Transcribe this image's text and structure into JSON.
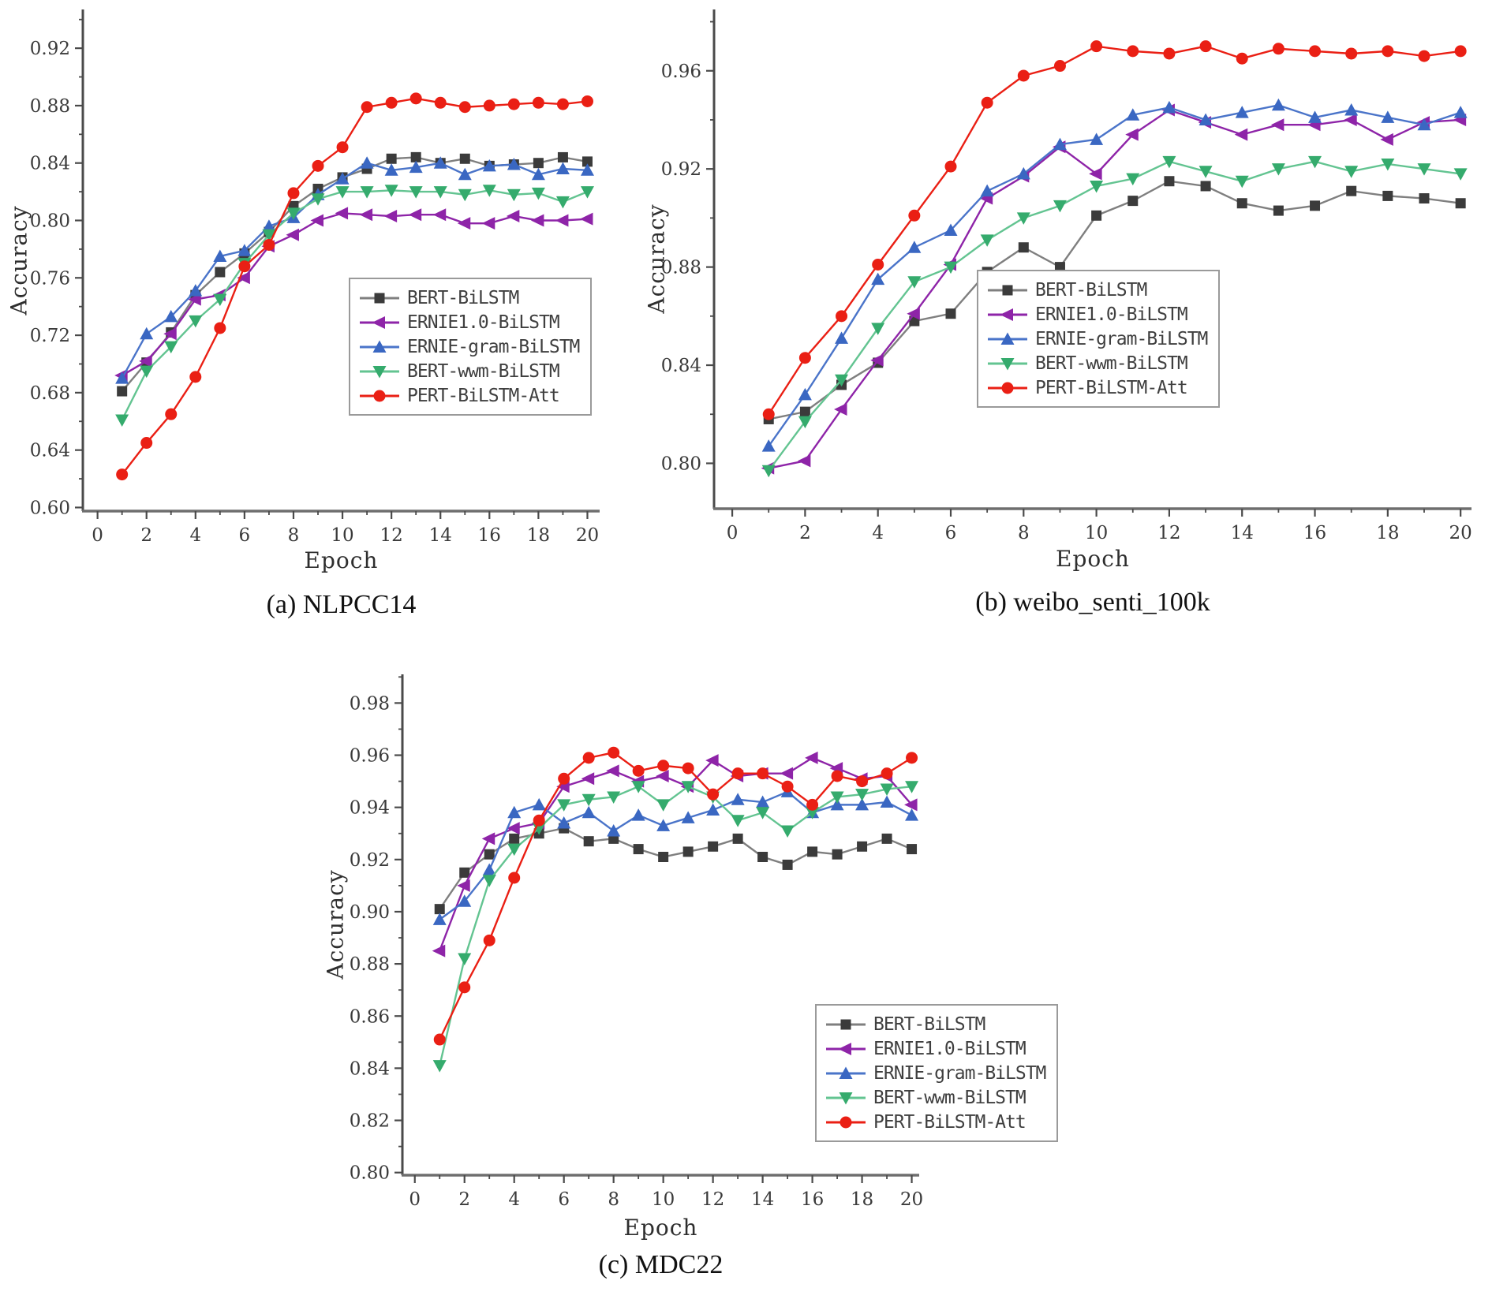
{
  "chart_data": [
    {
      "type": "line",
      "caption": "(a) NLPCC14",
      "xlabel": "Epoch",
      "ylabel": "Accuracy",
      "xlim": [
        0,
        20
      ],
      "ylim": [
        0.6,
        0.92
      ],
      "xticks": [
        0,
        2,
        4,
        6,
        8,
        10,
        12,
        14,
        16,
        18,
        20
      ],
      "yticks": [
        0.6,
        0.64,
        0.68,
        0.72,
        0.76,
        0.8,
        0.84,
        0.88,
        0.92
      ],
      "grid": false,
      "legend_position": "inside lower right",
      "x": [
        1,
        2,
        3,
        4,
        5,
        6,
        7,
        8,
        9,
        10,
        11,
        12,
        13,
        14,
        15,
        16,
        17,
        18,
        19,
        20
      ],
      "series": [
        {
          "name": "BERT-BiLSTM",
          "marker": "square",
          "color": "#3b3b3b",
          "line_color": "#7f7f7f",
          "values": [
            0.681,
            0.701,
            0.722,
            0.748,
            0.764,
            0.777,
            0.792,
            0.81,
            0.822,
            0.83,
            0.836,
            0.843,
            0.844,
            0.84,
            0.843,
            0.838,
            0.839,
            0.84,
            0.844,
            0.841
          ]
        },
        {
          "name": "ERNIE1.0-BiLSTM",
          "marker": "triangle-left",
          "color": "#8e24a8",
          "line_color": "#8e24a8",
          "values": [
            0.692,
            0.702,
            0.721,
            0.745,
            0.748,
            0.76,
            0.782,
            0.79,
            0.8,
            0.805,
            0.804,
            0.803,
            0.804,
            0.804,
            0.798,
            0.798,
            0.803,
            0.8,
            0.8,
            0.801
          ]
        },
        {
          "name": "ERNIE-gram-BiLSTM",
          "marker": "triangle-up",
          "color": "#3a67c2",
          "line_color": "#4a74c9",
          "values": [
            0.69,
            0.721,
            0.733,
            0.751,
            0.775,
            0.779,
            0.796,
            0.802,
            0.818,
            0.829,
            0.84,
            0.835,
            0.837,
            0.84,
            0.832,
            0.838,
            0.839,
            0.832,
            0.836,
            0.835
          ]
        },
        {
          "name": "BERT-wwm-BiLSTM",
          "marker": "triangle-down",
          "color": "#35ab6d",
          "line_color": "#63c491",
          "values": [
            0.661,
            0.695,
            0.712,
            0.73,
            0.745,
            0.77,
            0.79,
            0.805,
            0.815,
            0.82,
            0.82,
            0.821,
            0.82,
            0.82,
            0.818,
            0.821,
            0.818,
            0.819,
            0.813,
            0.82
          ]
        },
        {
          "name": "PERT-BiLSTM-Att",
          "marker": "circle",
          "color": "#ea1f14",
          "line_color": "#ea1f14",
          "values": [
            0.623,
            0.645,
            0.665,
            0.691,
            0.725,
            0.768,
            0.783,
            0.819,
            0.838,
            0.851,
            0.879,
            0.882,
            0.885,
            0.882,
            0.879,
            0.88,
            0.881,
            0.882,
            0.881,
            0.883
          ]
        }
      ]
    },
    {
      "type": "line",
      "caption": "(b) weibo_senti_100k",
      "xlabel": "Epoch",
      "ylabel": "Accuracy",
      "xlim": [
        0,
        20
      ],
      "ylim": [
        0.8,
        0.96
      ],
      "xticks": [
        0,
        2,
        4,
        6,
        8,
        10,
        12,
        14,
        16,
        18,
        20
      ],
      "yticks": [
        0.8,
        0.84,
        0.88,
        0.92,
        0.96
      ],
      "grid": false,
      "legend_position": "inside lower right",
      "x": [
        1,
        2,
        3,
        4,
        5,
        6,
        7,
        8,
        9,
        10,
        11,
        12,
        13,
        14,
        15,
        16,
        17,
        18,
        19,
        20
      ],
      "series": [
        {
          "name": "BERT-BiLSTM",
          "marker": "square",
          "color": "#3b3b3b",
          "line_color": "#7f7f7f",
          "values": [
            0.818,
            0.821,
            0.832,
            0.841,
            0.858,
            0.861,
            0.878,
            0.888,
            0.88,
            0.901,
            0.907,
            0.915,
            0.913,
            0.906,
            0.903,
            0.905,
            0.911,
            0.909,
            0.908,
            0.906
          ]
        },
        {
          "name": "ERNIE1.0-BiLSTM",
          "marker": "triangle-left",
          "color": "#8e24a8",
          "line_color": "#8e24a8",
          "values": [
            0.798,
            0.801,
            0.822,
            0.842,
            0.861,
            0.881,
            0.908,
            0.917,
            0.929,
            0.918,
            0.934,
            0.944,
            0.939,
            0.934,
            0.938,
            0.938,
            0.94,
            0.932,
            0.939,
            0.94
          ]
        },
        {
          "name": "ERNIE-gram-BiLSTM",
          "marker": "triangle-up",
          "color": "#3a67c2",
          "line_color": "#4a74c9",
          "values": [
            0.807,
            0.828,
            0.851,
            0.875,
            0.888,
            0.895,
            0.911,
            0.918,
            0.93,
            0.932,
            0.942,
            0.945,
            0.94,
            0.943,
            0.946,
            0.941,
            0.944,
            0.941,
            0.938,
            0.943
          ]
        },
        {
          "name": "BERT-wwm-BiLSTM",
          "marker": "triangle-down",
          "color": "#35ab6d",
          "line_color": "#63c491",
          "values": [
            0.797,
            0.817,
            0.834,
            0.855,
            0.874,
            0.88,
            0.891,
            0.9,
            0.905,
            0.913,
            0.916,
            0.923,
            0.919,
            0.915,
            0.92,
            0.923,
            0.919,
            0.922,
            0.92,
            0.918
          ]
        },
        {
          "name": "PERT-BiLSTM-Att",
          "marker": "circle",
          "color": "#ea1f14",
          "line_color": "#ea1f14",
          "values": [
            0.82,
            0.843,
            0.86,
            0.881,
            0.901,
            0.921,
            0.947,
            0.958,
            0.962,
            0.97,
            0.968,
            0.967,
            0.97,
            0.965,
            0.969,
            0.968,
            0.967,
            0.968,
            0.966,
            0.968
          ]
        }
      ]
    },
    {
      "type": "line",
      "caption": "(c) MDC22",
      "xlabel": "Epoch",
      "ylabel": "Accuracy",
      "xlim": [
        0,
        20
      ],
      "ylim": [
        0.8,
        0.98
      ],
      "xticks": [
        0,
        2,
        4,
        6,
        8,
        10,
        12,
        14,
        16,
        18,
        20
      ],
      "yticks": [
        0.8,
        0.82,
        0.84,
        0.86,
        0.88,
        0.9,
        0.92,
        0.94,
        0.96,
        0.98
      ],
      "grid": false,
      "legend_position": "inside lower right",
      "x": [
        1,
        2,
        3,
        4,
        5,
        6,
        7,
        8,
        9,
        10,
        11,
        12,
        13,
        14,
        15,
        16,
        17,
        18,
        19,
        20
      ],
      "series": [
        {
          "name": "BERT-BiLSTM",
          "marker": "square",
          "color": "#3b3b3b",
          "line_color": "#7f7f7f",
          "values": [
            0.901,
            0.915,
            0.922,
            0.928,
            0.93,
            0.932,
            0.927,
            0.928,
            0.924,
            0.921,
            0.923,
            0.925,
            0.928,
            0.921,
            0.918,
            0.923,
            0.922,
            0.925,
            0.928,
            0.924
          ]
        },
        {
          "name": "ERNIE1.0-BiLSTM",
          "marker": "triangle-left",
          "color": "#8e24a8",
          "line_color": "#8e24a8",
          "values": [
            0.885,
            0.91,
            0.928,
            0.932,
            0.934,
            0.948,
            0.951,
            0.954,
            0.95,
            0.952,
            0.948,
            0.958,
            0.952,
            0.953,
            0.953,
            0.959,
            0.955,
            0.951,
            0.952,
            0.941
          ]
        },
        {
          "name": "ERNIE-gram-BiLSTM",
          "marker": "triangle-up",
          "color": "#3a67c2",
          "line_color": "#4a74c9",
          "values": [
            0.897,
            0.904,
            0.916,
            0.938,
            0.941,
            0.934,
            0.938,
            0.931,
            0.937,
            0.933,
            0.936,
            0.939,
            0.943,
            0.942,
            0.946,
            0.938,
            0.941,
            0.941,
            0.942,
            0.937
          ]
        },
        {
          "name": "BERT-wwm-BiLSTM",
          "marker": "triangle-down",
          "color": "#35ab6d",
          "line_color": "#63c491",
          "values": [
            0.841,
            0.882,
            0.912,
            0.924,
            0.932,
            0.941,
            0.943,
            0.944,
            0.948,
            0.941,
            0.948,
            0.944,
            0.935,
            0.938,
            0.931,
            0.938,
            0.944,
            0.945,
            0.947,
            0.948
          ]
        },
        {
          "name": "PERT-BiLSTM-Att",
          "marker": "circle",
          "color": "#ea1f14",
          "line_color": "#ea1f14",
          "values": [
            0.851,
            0.871,
            0.889,
            0.913,
            0.935,
            0.951,
            0.959,
            0.961,
            0.954,
            0.956,
            0.955,
            0.945,
            0.953,
            0.953,
            0.948,
            0.941,
            0.952,
            0.95,
            0.953,
            0.959
          ]
        }
      ]
    }
  ]
}
